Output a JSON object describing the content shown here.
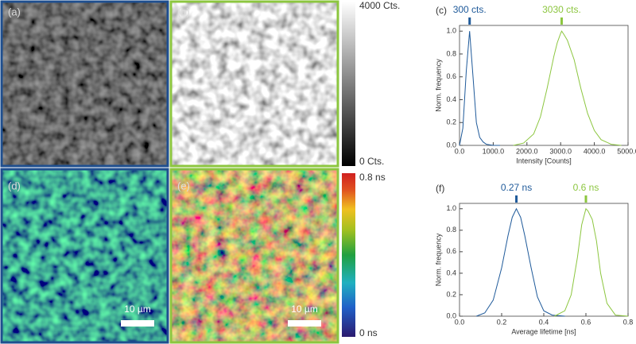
{
  "panels": [
    {
      "label": "(a)"
    },
    {
      "label": "(b)"
    },
    {
      "label": "(d)",
      "scalebar": "10 µm"
    },
    {
      "label": "(e)",
      "scalebar": "10 µm"
    }
  ],
  "colorbars": [
    {
      "top": "4000 Cts.",
      "bottom": "0 Cts."
    },
    {
      "top": "0.8 ns",
      "bottom": "0 ns"
    }
  ],
  "chart_data": [
    {
      "type": "line",
      "label": "(c)",
      "xlabel": "Intensity [Counts]",
      "ylabel": "Norm. frequency",
      "xlim": [
        0,
        5000
      ],
      "ylim": [
        0,
        1.05
      ],
      "xticks": [
        {
          "value": 0,
          "label": "0.0"
        },
        {
          "value": 1000,
          "label": "1000.0"
        },
        {
          "value": 2000,
          "label": "2000.0"
        },
        {
          "value": 3000,
          "label": "3000.0"
        },
        {
          "value": 4000,
          "label": "4000.0"
        },
        {
          "value": 5000,
          "label": "5000.0"
        }
      ],
      "yticks": [
        {
          "value": 0,
          "label": "0.0"
        },
        0.2,
        0.4,
        0.6,
        0.8,
        {
          "value": 1,
          "label": "1.0"
        }
      ],
      "series": [
        {
          "color": "#1f5a9a",
          "x": [
            0,
            100,
            200,
            300,
            400,
            500,
            600,
            700,
            800,
            1000,
            1200
          ],
          "values": [
            0,
            0.15,
            0.65,
            1.0,
            0.6,
            0.2,
            0.07,
            0.03,
            0.01,
            0,
            0
          ]
        },
        {
          "color": "#8cc63f",
          "x": [
            1600,
            1900,
            2200,
            2400,
            2600,
            2800,
            2900,
            3000,
            3030,
            3100,
            3200,
            3400,
            3600,
            3800,
            4000,
            4200,
            4500,
            4800
          ],
          "values": [
            0,
            0.02,
            0.1,
            0.25,
            0.5,
            0.78,
            0.9,
            0.98,
            1.0,
            0.97,
            0.92,
            0.75,
            0.5,
            0.28,
            0.13,
            0.05,
            0.01,
            0
          ]
        }
      ],
      "annotations": [
        {
          "text": "300 cts.",
          "x": 300,
          "color": "#1f5a9a"
        },
        {
          "text": "3030 cts.",
          "x": 3030,
          "color": "#8cc63f"
        }
      ]
    },
    {
      "type": "line",
      "label": "(f)",
      "xlabel": "Average lifetime [ns]",
      "ylabel": "Norm. frequency",
      "xlim": [
        0,
        0.8
      ],
      "ylim": [
        0,
        1.05
      ],
      "xticks": [
        {
          "value": 0,
          "label": "0.0"
        },
        0.2,
        0.4,
        0.6,
        0.8
      ],
      "yticks": [
        {
          "value": 0,
          "label": "0.0"
        },
        0.2,
        0.4,
        0.6,
        0.8,
        {
          "value": 1,
          "label": "1.0"
        }
      ],
      "series": [
        {
          "color": "#1f5a9a",
          "x": [
            0.08,
            0.12,
            0.16,
            0.2,
            0.23,
            0.25,
            0.27,
            0.29,
            0.31,
            0.34,
            0.37,
            0.4,
            0.44,
            0.5
          ],
          "values": [
            0,
            0.03,
            0.15,
            0.45,
            0.75,
            0.92,
            1.0,
            0.92,
            0.75,
            0.45,
            0.18,
            0.05,
            0.01,
            0
          ]
        },
        {
          "color": "#8cc63f",
          "x": [
            0.45,
            0.5,
            0.53,
            0.56,
            0.58,
            0.6,
            0.61,
            0.63,
            0.65,
            0.67,
            0.7,
            0.74,
            0.8
          ],
          "values": [
            0,
            0.05,
            0.2,
            0.55,
            0.85,
            1.0,
            0.98,
            0.9,
            0.7,
            0.4,
            0.12,
            0.01,
            0
          ]
        }
      ],
      "annotations": [
        {
          "text": "0.27 ns",
          "x": 0.27,
          "color": "#1f5a9a"
        },
        {
          "text": "0.6 ns",
          "x": 0.6,
          "color": "#8cc63f"
        }
      ]
    }
  ]
}
